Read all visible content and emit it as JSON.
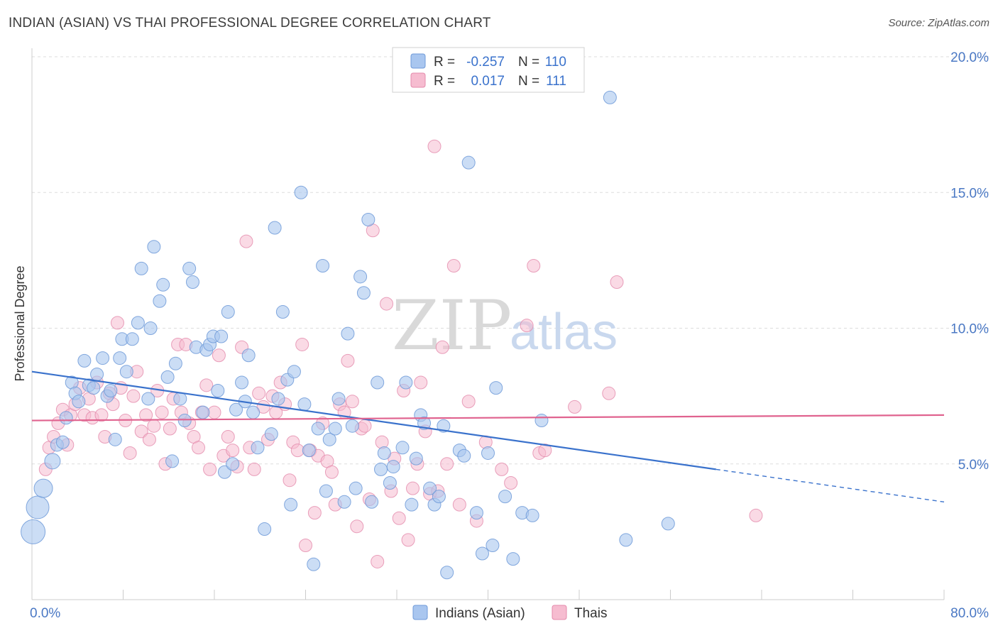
{
  "header": {
    "title": "INDIAN (ASIAN) VS THAI PROFESSIONAL DEGREE CORRELATION CHART",
    "source": "Source: ZipAtlas.com"
  },
  "watermark": {
    "zip": "ZIP",
    "atlas": "atlas"
  },
  "legend_top": {
    "row1": {
      "r_label": "R =",
      "r_value": "-0.257",
      "n_label": "N =",
      "n_value": "110"
    },
    "row2": {
      "r_label": "R =",
      "r_value": "0.017",
      "n_label": "N =",
      "n_value": "111"
    }
  },
  "legend_bottom": {
    "series1": "Indians (Asian)",
    "series2": "Thais"
  },
  "colors": {
    "series1_fill": "#a9c6ef",
    "series1_stroke": "#6f9ad8",
    "series1_line": "#3a72cc",
    "series2_fill": "#f6bcd0",
    "series2_stroke": "#e48aab",
    "series2_line": "#e0638f",
    "tick": "#4a78c4",
    "grid": "#dddddd"
  },
  "chart_data": {
    "type": "scatter",
    "title": "INDIAN (ASIAN) VS THAI PROFESSIONAL DEGREE CORRELATION CHART",
    "xlabel": "",
    "ylabel": "Professional Degree",
    "xlim": [
      0,
      80
    ],
    "ylim": [
      0,
      20
    ],
    "x_tick_labels": [
      "0.0%",
      "80.0%"
    ],
    "y_ticks": [
      5,
      10,
      15,
      20
    ],
    "y_tick_labels": [
      "5.0%",
      "10.0%",
      "15.0%",
      "20.0%"
    ],
    "grid": true,
    "legend_position": "top-center",
    "series": [
      {
        "name": "Indians (Asian)",
        "r": -0.257,
        "n": 110,
        "trend": {
          "x": [
            0,
            60
          ],
          "y": [
            8.4,
            4.8
          ],
          "dashed_to": [
            80,
            3.6
          ]
        },
        "points": [
          [
            0.1,
            2.5
          ],
          [
            0.5,
            3.4
          ],
          [
            1.0,
            4.1
          ],
          [
            1.8,
            5.1
          ],
          [
            2.2,
            5.7
          ],
          [
            2.7,
            5.8
          ],
          [
            3.0,
            6.7
          ],
          [
            3.5,
            8.0
          ],
          [
            3.8,
            7.6
          ],
          [
            4.1,
            7.3
          ],
          [
            4.6,
            8.8
          ],
          [
            5.0,
            7.9
          ],
          [
            5.4,
            7.8
          ],
          [
            5.7,
            8.3
          ],
          [
            6.2,
            8.9
          ],
          [
            6.6,
            7.5
          ],
          [
            6.9,
            7.7
          ],
          [
            7.3,
            5.9
          ],
          [
            7.7,
            8.9
          ],
          [
            7.9,
            9.6
          ],
          [
            8.3,
            8.4
          ],
          [
            8.8,
            9.6
          ],
          [
            9.3,
            10.2
          ],
          [
            9.6,
            12.2
          ],
          [
            10.2,
            7.4
          ],
          [
            10.4,
            10.0
          ],
          [
            10.7,
            13.0
          ],
          [
            11.2,
            11.0
          ],
          [
            11.5,
            11.6
          ],
          [
            11.9,
            8.2
          ],
          [
            12.3,
            5.1
          ],
          [
            12.6,
            8.7
          ],
          [
            13.0,
            7.4
          ],
          [
            13.4,
            6.6
          ],
          [
            13.8,
            12.2
          ],
          [
            14.1,
            11.7
          ],
          [
            14.4,
            9.3
          ],
          [
            15.0,
            6.9
          ],
          [
            15.3,
            9.2
          ],
          [
            15.6,
            9.4
          ],
          [
            15.9,
            9.7
          ],
          [
            16.3,
            7.7
          ],
          [
            16.6,
            9.7
          ],
          [
            16.9,
            4.7
          ],
          [
            17.2,
            10.6
          ],
          [
            17.6,
            5.0
          ],
          [
            17.9,
            7.0
          ],
          [
            18.4,
            8.0
          ],
          [
            18.7,
            7.3
          ],
          [
            19.0,
            9.0
          ],
          [
            19.4,
            6.9
          ],
          [
            19.8,
            5.6
          ],
          [
            20.4,
            2.6
          ],
          [
            21.0,
            6.1
          ],
          [
            21.3,
            13.7
          ],
          [
            21.6,
            7.4
          ],
          [
            22.0,
            10.6
          ],
          [
            22.4,
            8.1
          ],
          [
            22.7,
            3.5
          ],
          [
            23.0,
            8.4
          ],
          [
            23.6,
            15.0
          ],
          [
            23.9,
            7.2
          ],
          [
            24.3,
            5.5
          ],
          [
            24.7,
            1.3
          ],
          [
            25.1,
            6.3
          ],
          [
            25.5,
            12.3
          ],
          [
            25.8,
            4.0
          ],
          [
            26.1,
            5.9
          ],
          [
            26.6,
            6.3
          ],
          [
            26.9,
            7.4
          ],
          [
            27.4,
            3.6
          ],
          [
            27.7,
            9.8
          ],
          [
            28.1,
            6.4
          ],
          [
            28.4,
            4.1
          ],
          [
            28.8,
            11.9
          ],
          [
            29.1,
            11.3
          ],
          [
            29.5,
            14.0
          ],
          [
            29.8,
            3.6
          ],
          [
            30.3,
            8.0
          ],
          [
            30.6,
            4.8
          ],
          [
            30.9,
            5.4
          ],
          [
            31.4,
            4.3
          ],
          [
            31.7,
            4.9
          ],
          [
            32.5,
            5.6
          ],
          [
            32.8,
            8.0
          ],
          [
            33.3,
            3.5
          ],
          [
            33.7,
            5.2
          ],
          [
            34.1,
            6.8
          ],
          [
            34.4,
            6.5
          ],
          [
            34.9,
            4.1
          ],
          [
            35.3,
            3.5
          ],
          [
            35.7,
            3.8
          ],
          [
            36.1,
            6.4
          ],
          [
            36.4,
            1.0
          ],
          [
            37.5,
            5.5
          ],
          [
            37.9,
            5.3
          ],
          [
            38.3,
            16.1
          ],
          [
            39.0,
            3.2
          ],
          [
            39.5,
            1.7
          ],
          [
            40.0,
            5.4
          ],
          [
            40.4,
            2.0
          ],
          [
            40.7,
            7.8
          ],
          [
            41.5,
            3.8
          ],
          [
            42.2,
            1.5
          ],
          [
            43.0,
            3.2
          ],
          [
            43.9,
            3.1
          ],
          [
            44.7,
            6.6
          ],
          [
            50.7,
            18.5
          ],
          [
            52.1,
            2.2
          ],
          [
            55.8,
            2.8
          ]
        ]
      },
      {
        "name": "Thais",
        "r": 0.017,
        "n": 111,
        "trend": {
          "x": [
            0,
            80
          ],
          "y": [
            6.6,
            6.8
          ]
        },
        "points": [
          [
            1.2,
            4.8
          ],
          [
            1.5,
            5.6
          ],
          [
            1.9,
            6.0
          ],
          [
            2.3,
            6.5
          ],
          [
            2.7,
            7.0
          ],
          [
            3.1,
            5.7
          ],
          [
            3.4,
            6.8
          ],
          [
            3.8,
            7.2
          ],
          [
            4.2,
            7.8
          ],
          [
            4.6,
            6.8
          ],
          [
            5.0,
            7.4
          ],
          [
            5.3,
            6.7
          ],
          [
            5.7,
            8.0
          ],
          [
            6.1,
            6.8
          ],
          [
            6.4,
            6.0
          ],
          [
            6.8,
            7.6
          ],
          [
            7.1,
            7.2
          ],
          [
            7.5,
            10.2
          ],
          [
            7.8,
            7.8
          ],
          [
            8.2,
            6.6
          ],
          [
            8.6,
            5.4
          ],
          [
            8.9,
            7.5
          ],
          [
            9.2,
            8.4
          ],
          [
            9.6,
            6.2
          ],
          [
            10.0,
            6.8
          ],
          [
            10.3,
            5.9
          ],
          [
            10.7,
            6.4
          ],
          [
            11.0,
            7.7
          ],
          [
            11.4,
            6.9
          ],
          [
            11.7,
            5.0
          ],
          [
            12.1,
            6.3
          ],
          [
            12.4,
            7.4
          ],
          [
            12.8,
            9.4
          ],
          [
            13.1,
            6.9
          ],
          [
            13.5,
            9.4
          ],
          [
            13.8,
            6.5
          ],
          [
            14.2,
            6.0
          ],
          [
            14.6,
            5.6
          ],
          [
            14.9,
            6.9
          ],
          [
            15.3,
            7.9
          ],
          [
            15.6,
            4.8
          ],
          [
            16.0,
            6.9
          ],
          [
            16.4,
            9.0
          ],
          [
            16.8,
            5.3
          ],
          [
            17.2,
            6.0
          ],
          [
            17.6,
            5.5
          ],
          [
            18.0,
            4.9
          ],
          [
            18.4,
            9.3
          ],
          [
            18.8,
            13.2
          ],
          [
            19.1,
            5.6
          ],
          [
            19.5,
            4.8
          ],
          [
            19.9,
            7.6
          ],
          [
            20.3,
            7.1
          ],
          [
            20.7,
            5.9
          ],
          [
            21.1,
            7.5
          ],
          [
            21.4,
            6.9
          ],
          [
            21.8,
            8.0
          ],
          [
            22.2,
            7.2
          ],
          [
            22.6,
            4.4
          ],
          [
            22.9,
            5.8
          ],
          [
            23.3,
            5.5
          ],
          [
            23.7,
            9.4
          ],
          [
            24.0,
            2.0
          ],
          [
            24.4,
            5.5
          ],
          [
            24.8,
            3.2
          ],
          [
            25.1,
            5.3
          ],
          [
            25.5,
            6.5
          ],
          [
            25.9,
            5.1
          ],
          [
            26.3,
            4.7
          ],
          [
            26.6,
            3.5
          ],
          [
            27.0,
            7.2
          ],
          [
            27.4,
            6.9
          ],
          [
            27.7,
            8.8
          ],
          [
            28.1,
            7.3
          ],
          [
            28.5,
            2.7
          ],
          [
            28.9,
            6.3
          ],
          [
            29.2,
            6.4
          ],
          [
            29.6,
            3.7
          ],
          [
            29.9,
            13.6
          ],
          [
            30.3,
            1.4
          ],
          [
            30.7,
            5.8
          ],
          [
            31.1,
            10.9
          ],
          [
            31.5,
            4.0
          ],
          [
            31.8,
            5.2
          ],
          [
            32.2,
            3.0
          ],
          [
            32.6,
            7.7
          ],
          [
            33.0,
            2.2
          ],
          [
            33.4,
            4.1
          ],
          [
            33.8,
            5.0
          ],
          [
            34.1,
            8.0
          ],
          [
            34.5,
            6.2
          ],
          [
            34.9,
            3.9
          ],
          [
            35.3,
            16.7
          ],
          [
            35.6,
            4.0
          ],
          [
            36.0,
            9.3
          ],
          [
            36.4,
            5.0
          ],
          [
            37.0,
            12.3
          ],
          [
            37.5,
            3.5
          ],
          [
            38.3,
            7.3
          ],
          [
            39.0,
            2.9
          ],
          [
            39.8,
            5.8
          ],
          [
            41.2,
            4.8
          ],
          [
            42.0,
            4.3
          ],
          [
            43.4,
            10.1
          ],
          [
            44.0,
            12.3
          ],
          [
            44.5,
            5.4
          ],
          [
            45.0,
            5.5
          ],
          [
            47.6,
            7.1
          ],
          [
            50.6,
            7.6
          ],
          [
            51.3,
            11.7
          ],
          [
            63.5,
            3.1
          ]
        ]
      }
    ]
  }
}
